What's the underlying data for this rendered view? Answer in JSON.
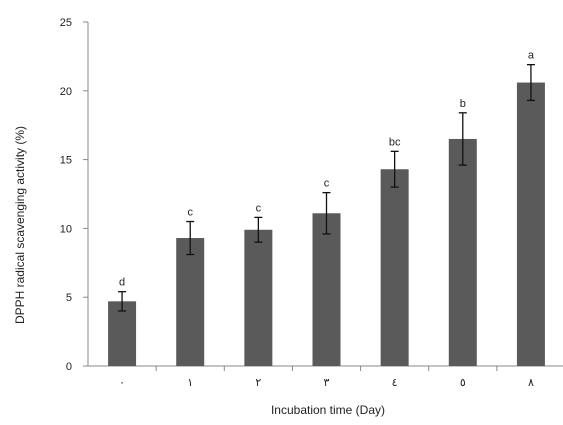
{
  "chart_data": {
    "type": "bar",
    "title": "",
    "xlabel": "Incubation time (Day)",
    "ylabel": "DPPH radical scavenging activity (%)",
    "categories": [
      "٠",
      "١",
      "٢",
      "٣",
      "٤",
      "٥",
      "٨"
    ],
    "values": [
      4.7,
      9.3,
      9.9,
      11.1,
      14.3,
      16.5,
      20.6
    ],
    "errors": [
      0.7,
      1.2,
      0.9,
      1.5,
      1.3,
      1.9,
      1.3
    ],
    "significance_letters": [
      "d",
      "c",
      "c",
      "c",
      "bc",
      "b",
      "a"
    ],
    "ylim": [
      0,
      25
    ],
    "yticks": [
      0,
      5,
      10,
      15,
      20,
      25
    ],
    "grid": false,
    "legend": "none",
    "bar_color": "#5a5a5a",
    "axis_color": "#888888"
  }
}
